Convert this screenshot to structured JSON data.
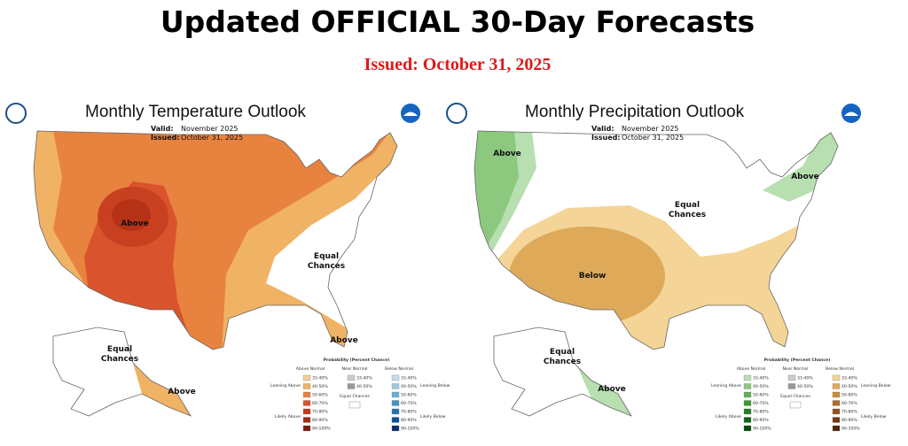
{
  "header": {
    "title": "Updated OFFICIAL 30-Day Forecasts",
    "subtitle": "Issued: October 31, 2025"
  },
  "maps": [
    {
      "title": "Monthly Temperature Outlook",
      "valid_label": "Valid:",
      "valid": "November 2025",
      "issued_label": "Issued:",
      "issued": "October 31, 2025",
      "labels": [
        [
          "Above"
        ],
        [
          "Equal",
          "Chances"
        ],
        [
          "Above"
        ],
        [
          "Equal",
          "Chances"
        ],
        [
          "Above"
        ]
      ]
    },
    {
      "title": "Monthly Precipitation Outlook",
      "valid_label": "Valid:",
      "valid": "November 2025",
      "issued_label": "Issued:",
      "issued": "October 31, 2025",
      "labels": [
        [
          "Above"
        ],
        [
          "Above"
        ],
        [
          "Equal",
          "Chances"
        ],
        [
          "Below"
        ],
        [
          "Equal",
          "Chances"
        ],
        [
          "Above"
        ]
      ]
    }
  ],
  "legend": {
    "title": "Probability (Percent Chance)",
    "columns": [
      "Above Normal",
      "Near Normal",
      "Below Normal"
    ],
    "ranges": [
      "33-40%",
      "40-50%",
      "50-60%",
      "60-70%",
      "70-80%",
      "80-90%",
      "90-100%"
    ],
    "near_ranges": [
      "33-40%",
      "40-50%"
    ],
    "equal": "Equal Chances",
    "side": [
      "Leaning Above",
      "Likely Above",
      "Leaning Below",
      "Likely Below"
    ]
  }
}
